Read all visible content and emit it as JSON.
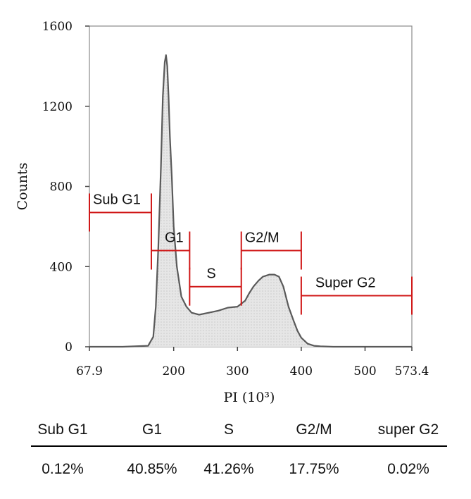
{
  "chart_data": {
    "type": "area",
    "xlabel": "PI (10³)",
    "ylabel": "Counts",
    "xlim": [
      67.9,
      573.4
    ],
    "ylim": [
      0,
      1600
    ],
    "x_ticks": [
      "67.9",
      "200",
      "300",
      "400",
      "500",
      "573.4"
    ],
    "x_tick_values": [
      67.9,
      200,
      300,
      400,
      500,
      573.4
    ],
    "y_ticks": [
      "0",
      "400",
      "800",
      "1200",
      "1600"
    ],
    "y_tick_values": [
      0,
      400,
      800,
      1200,
      1600
    ],
    "series": [
      {
        "x": [
          67.9,
          120,
          160,
          168,
          172,
          176,
          180,
          183,
          186,
          188,
          190,
          192,
          194,
          197,
          200,
          205,
          212,
          220,
          228,
          240,
          255,
          270,
          285,
          300,
          312,
          318,
          325,
          333,
          340,
          350,
          358,
          365,
          372,
          380,
          388,
          394,
          400,
          410,
          420,
          430,
          450,
          500,
          573.4
        ],
        "y": [
          0,
          0,
          5,
          50,
          200,
          500,
          900,
          1250,
          1420,
          1455,
          1400,
          1250,
          1050,
          850,
          600,
          400,
          250,
          200,
          170,
          160,
          170,
          180,
          195,
          200,
          230,
          265,
          300,
          330,
          350,
          360,
          360,
          350,
          300,
          200,
          130,
          80,
          45,
          15,
          5,
          2,
          0,
          0,
          0
        ]
      }
    ],
    "gates": [
      {
        "label": "Sub G1",
        "x1": 67.9,
        "x2": 165,
        "y": 670
      },
      {
        "label": "G1",
        "x1": 165,
        "x2": 225,
        "y": 480
      },
      {
        "label": "S",
        "x1": 225,
        "x2": 306,
        "y": 300
      },
      {
        "label": "G2/M",
        "x1": 306,
        "x2": 400,
        "y": 480
      },
      {
        "label": "Super G2",
        "x1": 400,
        "x2": 573.4,
        "y": 255
      }
    ]
  },
  "table": {
    "headers": [
      "Sub G1",
      "G1",
      "S",
      "G2/M",
      "super G2"
    ],
    "values": [
      "0.12%",
      "40.85%",
      "41.26%",
      "17.75%",
      "0.02%"
    ]
  },
  "colors": {
    "gate": "#d01818",
    "fill": "#e6e6e6",
    "curve": "#5a5a5a"
  }
}
